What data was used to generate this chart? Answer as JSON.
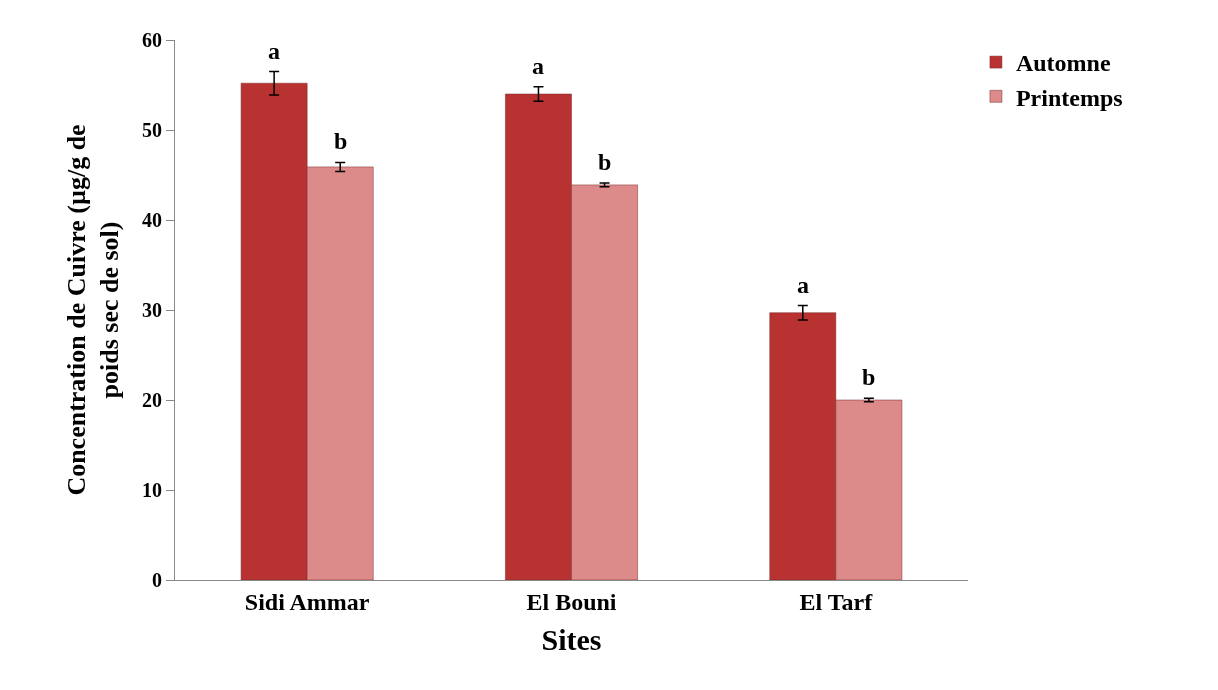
{
  "chart_data": {
    "type": "bar",
    "xlabel": "Sites",
    "ylabel": "Concentration de Cuivre (µg/g de poids sec de sol)",
    "categories": [
      "Sidi Ammar",
      "El Bouni",
      "El Tarf"
    ],
    "series": [
      {
        "name": "Automne",
        "color": "#b83232",
        "values": [
          55.2,
          54.0,
          29.7
        ],
        "errors": [
          1.3,
          0.8,
          0.8
        ],
        "value_labels": [
          "a",
          "a",
          "a"
        ]
      },
      {
        "name": "Printemps",
        "color": "#dc8a8a",
        "values": [
          45.9,
          43.9,
          20.0
        ],
        "errors": [
          0.5,
          0.2,
          0.2
        ],
        "value_labels": [
          "b",
          "b",
          "b"
        ]
      }
    ],
    "ylim": [
      0,
      60
    ],
    "yticks": [
      0,
      10,
      20,
      30,
      40,
      50,
      60
    ],
    "legend": "top right"
  }
}
